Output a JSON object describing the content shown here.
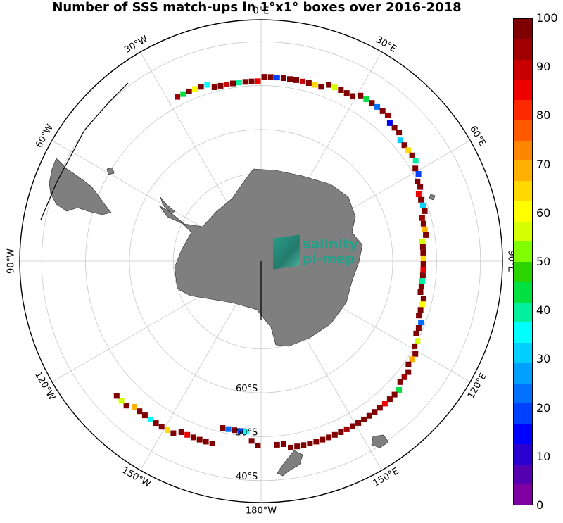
{
  "title": "Number of SSS match-ups in 1°x1° boxes over 2016-2018",
  "map": {
    "longitude_labels": [
      {
        "text": "0°E",
        "lon": 0
      },
      {
        "text": "30°E",
        "lon": 30
      },
      {
        "text": "60°E",
        "lon": 60
      },
      {
        "text": "90°E",
        "lon": 90
      },
      {
        "text": "120°E",
        "lon": 120
      },
      {
        "text": "150°E",
        "lon": 150
      },
      {
        "text": "180°W",
        "lon": 180
      },
      {
        "text": "150°W",
        "lon": -150
      },
      {
        "text": "120°W",
        "lon": -120
      },
      {
        "text": "90°W",
        "lon": -90
      },
      {
        "text": "60°W",
        "lon": -60
      },
      {
        "text": "30°W",
        "lon": -30
      }
    ],
    "latitude_labels": [
      "60°S",
      "50°S",
      "40°S"
    ],
    "logo": {
      "line1": "salinity",
      "line2": "pi-mep"
    },
    "colors": {
      "land": "#7f7f7f",
      "grid": "#c8c8c8"
    }
  },
  "colorbar": {
    "range": [
      0,
      100
    ],
    "ticks": [
      "100",
      "90",
      "80",
      "70",
      "60",
      "50",
      "40",
      "30",
      "20",
      "10",
      "0"
    ],
    "colors": [
      "#7f0000",
      "#a10000",
      "#c80000",
      "#ee0000",
      "#ff2a00",
      "#ff5a00",
      "#ff8700",
      "#ffb000",
      "#ffd800",
      "#ffff00",
      "#d5ff00",
      "#7fff00",
      "#2ad400",
      "#00e040",
      "#00f0a0",
      "#00ffff",
      "#00cfff",
      "#00a0ff",
      "#0070ff",
      "#0040ff",
      "#0000ff",
      "#2a00d0",
      "#5500b0",
      "#7f00a0"
    ]
  },
  "match_ups": [
    {
      "lon": -27,
      "lat": -48,
      "v": 95
    },
    {
      "lon": -25,
      "lat": -48,
      "v": 45
    },
    {
      "lon": -23,
      "lat": -48,
      "v": 98
    },
    {
      "lon": -21,
      "lat": -48,
      "v": 60
    },
    {
      "lon": -19,
      "lat": -48,
      "v": 99
    },
    {
      "lon": -17,
      "lat": -48,
      "v": 35
    },
    {
      "lon": -15,
      "lat": -49,
      "v": 97
    },
    {
      "lon": -13,
      "lat": -49,
      "v": 100
    },
    {
      "lon": -11,
      "lat": -49,
      "v": 88
    },
    {
      "lon": -9,
      "lat": -49,
      "v": 99
    },
    {
      "lon": -7,
      "lat": -49,
      "v": 40
    },
    {
      "lon": -5,
      "lat": -49,
      "v": 98
    },
    {
      "lon": -3,
      "lat": -49,
      "v": 100
    },
    {
      "lon": -1,
      "lat": -49,
      "v": 85
    },
    {
      "lon": 1,
      "lat": -48,
      "v": 99
    },
    {
      "lon": 3,
      "lat": -48,
      "v": 100
    },
    {
      "lon": 5,
      "lat": -48,
      "v": 20
    },
    {
      "lon": 7,
      "lat": -48,
      "v": 99
    },
    {
      "lon": 9,
      "lat": -48,
      "v": 100
    },
    {
      "lon": 11,
      "lat": -48,
      "v": 97
    },
    {
      "lon": 13,
      "lat": -48,
      "v": 90
    },
    {
      "lon": 15,
      "lat": -48,
      "v": 100
    },
    {
      "lon": 17,
      "lat": -48,
      "v": 65
    },
    {
      "lon": 19,
      "lat": -48,
      "v": 98
    },
    {
      "lon": 21,
      "lat": -47,
      "v": 99
    },
    {
      "lon": 23,
      "lat": -47,
      "v": 55
    },
    {
      "lon": 25,
      "lat": -47,
      "v": 100
    },
    {
      "lon": 27,
      "lat": -47,
      "v": 97
    },
    {
      "lon": 29,
      "lat": -47,
      "v": 99
    },
    {
      "lon": 31,
      "lat": -46,
      "v": 100
    },
    {
      "lon": 33,
      "lat": -46,
      "v": 45
    },
    {
      "lon": 35,
      "lat": -46,
      "v": 99
    },
    {
      "lon": 37,
      "lat": -46,
      "v": 25
    },
    {
      "lon": 39,
      "lat": -46,
      "v": 100
    },
    {
      "lon": 41,
      "lat": -46,
      "v": 92
    },
    {
      "lon": 43,
      "lat": -47,
      "v": 15
    },
    {
      "lon": 45,
      "lat": -47,
      "v": 99
    },
    {
      "lon": 47,
      "lat": -47,
      "v": 100
    },
    {
      "lon": 49,
      "lat": -48,
      "v": 30
    },
    {
      "lon": 51,
      "lat": -48,
      "v": 98
    },
    {
      "lon": 53,
      "lat": -48,
      "v": 65
    },
    {
      "lon": 55,
      "lat": -48,
      "v": 100
    },
    {
      "lon": 57,
      "lat": -48,
      "v": 40
    },
    {
      "lon": 59,
      "lat": -49,
      "v": 97
    },
    {
      "lon": 61,
      "lat": -49,
      "v": 20
    },
    {
      "lon": 63,
      "lat": -50,
      "v": 99
    },
    {
      "lon": 65,
      "lat": -50,
      "v": 100
    },
    {
      "lon": 67,
      "lat": -51,
      "v": 85
    },
    {
      "lon": 69,
      "lat": -51,
      "v": 99
    },
    {
      "lon": 71,
      "lat": -51,
      "v": 30
    },
    {
      "lon": 73,
      "lat": -51,
      "v": 100
    },
    {
      "lon": 75,
      "lat": -52,
      "v": 95
    },
    {
      "lon": 77,
      "lat": -52,
      "v": 99
    },
    {
      "lon": 79,
      "lat": -52,
      "v": 70
    },
    {
      "lon": 81,
      "lat": -52,
      "v": 100
    },
    {
      "lon": 83,
      "lat": -53,
      "v": 55
    },
    {
      "lon": 85,
      "lat": -53,
      "v": 98
    },
    {
      "lon": 87,
      "lat": -53,
      "v": 100
    },
    {
      "lon": 89,
      "lat": -53,
      "v": 65
    },
    {
      "lon": 91,
      "lat": -53,
      "v": 99
    },
    {
      "lon": 93,
      "lat": -53,
      "v": 85
    },
    {
      "lon": 95,
      "lat": -53,
      "v": 100
    },
    {
      "lon": 97,
      "lat": -53,
      "v": 40
    },
    {
      "lon": 99,
      "lat": -53,
      "v": 99
    },
    {
      "lon": 101,
      "lat": -53,
      "v": 97
    },
    {
      "lon": 103,
      "lat": -52,
      "v": 100
    },
    {
      "lon": 105,
      "lat": -52,
      "v": 60
    },
    {
      "lon": 107,
      "lat": -52,
      "v": 99
    },
    {
      "lon": 109,
      "lat": -52,
      "v": 100
    },
    {
      "lon": 111,
      "lat": -51,
      "v": 25
    },
    {
      "lon": 113,
      "lat": -51,
      "v": 98
    },
    {
      "lon": 115,
      "lat": -51,
      "v": 100
    },
    {
      "lon": 117,
      "lat": -50,
      "v": 55
    },
    {
      "lon": 119,
      "lat": -50,
      "v": 99
    },
    {
      "lon": 121,
      "lat": -49,
      "v": 100
    },
    {
      "lon": 123,
      "lat": -49,
      "v": 70
    },
    {
      "lon": 125,
      "lat": -49,
      "v": 99
    },
    {
      "lon": 127,
      "lat": -48,
      "v": 100
    },
    {
      "lon": 129,
      "lat": -48,
      "v": 95
    },
    {
      "lon": 131,
      "lat": -48,
      "v": 99
    },
    {
      "lon": 133,
      "lat": -47,
      "v": 45
    },
    {
      "lon": 135,
      "lat": -47,
      "v": 100
    },
    {
      "lon": 137,
      "lat": -47,
      "v": 99
    },
    {
      "lon": 139,
      "lat": -47,
      "v": 85
    },
    {
      "lon": 141,
      "lat": -47,
      "v": 100
    },
    {
      "lon": 143,
      "lat": -47,
      "v": 99
    },
    {
      "lon": 145,
      "lat": -47,
      "v": 97
    },
    {
      "lon": 147,
      "lat": -47,
      "v": 100
    },
    {
      "lon": 149,
      "lat": -47,
      "v": 99
    },
    {
      "lon": 151,
      "lat": -47,
      "v": 100
    },
    {
      "lon": 153,
      "lat": -47,
      "v": 95
    },
    {
      "lon": 155,
      "lat": -47,
      "v": 99
    },
    {
      "lon": 157,
      "lat": -47,
      "v": 100
    },
    {
      "lon": 159,
      "lat": -47,
      "v": 99
    },
    {
      "lon": 161,
      "lat": -47,
      "v": 100
    },
    {
      "lon": 163,
      "lat": -47,
      "v": 98
    },
    {
      "lon": 165,
      "lat": -47,
      "v": 100
    },
    {
      "lon": 167,
      "lat": -47,
      "v": 99
    },
    {
      "lon": 169,
      "lat": -47,
      "v": 100
    },
    {
      "lon": 171,
      "lat": -47,
      "v": 99
    },
    {
      "lon": 173,
      "lat": -48,
      "v": 100
    },
    {
      "lon": 175,
      "lat": -48,
      "v": 97
    },
    {
      "lon": -179,
      "lat": -48,
      "v": 99
    },
    {
      "lon": -177,
      "lat": -49,
      "v": 100
    },
    {
      "lon": -175,
      "lat": -51,
      "v": 35
    },
    {
      "lon": -173,
      "lat": -51,
      "v": 20
    },
    {
      "lon": -171,
      "lat": -51,
      "v": 99
    },
    {
      "lon": -169,
      "lat": -51,
      "v": 25
    },
    {
      "lon": -167,
      "lat": -51,
      "v": 99
    },
    {
      "lon": -165,
      "lat": -47,
      "v": 100
    },
    {
      "lon": -163,
      "lat": -47,
      "v": 99
    },
    {
      "lon": -161,
      "lat": -47,
      "v": 97
    },
    {
      "lon": -159,
      "lat": -47,
      "v": 100
    },
    {
      "lon": -157,
      "lat": -47,
      "v": 85
    },
    {
      "lon": -155,
      "lat": -47,
      "v": 99
    },
    {
      "lon": -153,
      "lat": -46,
      "v": 100
    },
    {
      "lon": -151,
      "lat": -46,
      "v": 65
    },
    {
      "lon": -149,
      "lat": -46,
      "v": 99
    },
    {
      "lon": -147,
      "lat": -46,
      "v": 100
    },
    {
      "lon": -145,
      "lat": -46,
      "v": 35
    },
    {
      "lon": -143,
      "lat": -46,
      "v": 98
    },
    {
      "lon": -141,
      "lat": -46,
      "v": 100
    },
    {
      "lon": -139,
      "lat": -46,
      "v": 70
    },
    {
      "lon": -137,
      "lat": -45,
      "v": 99
    },
    {
      "lon": -135,
      "lat": -45,
      "v": 55
    },
    {
      "lon": -133,
      "lat": -45,
      "v": 100
    }
  ]
}
